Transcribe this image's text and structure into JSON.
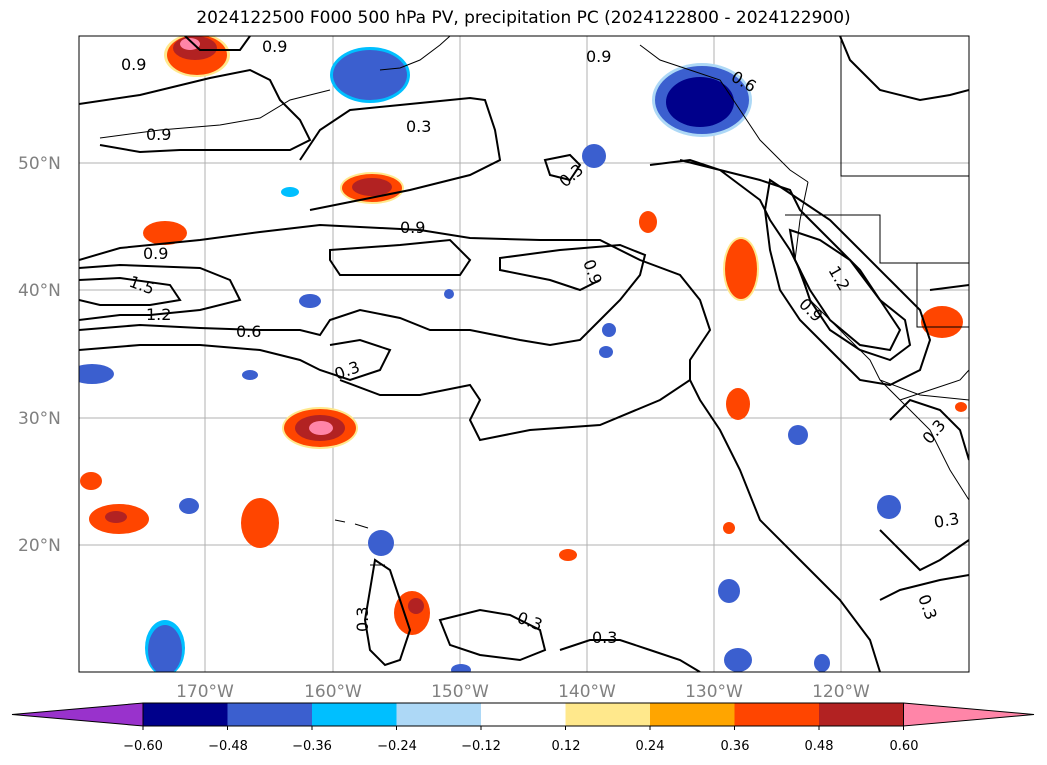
{
  "title": "2024122500 F000 500 hPa PV, precipitation PC (2024122800 - 2024122900)",
  "map": {
    "lat_labels": [
      "50°N",
      "40°N",
      "30°N",
      "20°N"
    ],
    "lon_labels": [
      "170°W",
      "160°W",
      "150°W",
      "140°W",
      "130°W",
      "120°W"
    ],
    "contour_labels": [
      "0.9",
      "0.9",
      "0.9",
      "0.9",
      "0.3",
      "0.9",
      "0.9",
      "1.5",
      "1.2",
      "0.6",
      "0.3",
      "0.3",
      "0.9",
      "0.6",
      "1.2",
      "0.9",
      "0.3",
      "0.3",
      "0.3",
      "0.3",
      "0.3",
      "0.3"
    ]
  },
  "colorbar": {
    "ticks": [
      "−0.60",
      "−0.48",
      "−0.36",
      "−0.24",
      "−0.12",
      "0.12",
      "0.24",
      "0.36",
      "0.48",
      "0.60"
    ],
    "colors": [
      "#9932cc",
      "#00008b",
      "#3b5fcf",
      "#00bfff",
      "#add8f6",
      "#ffffff",
      "#ffe88c",
      "#ffa500",
      "#ff4500",
      "#b22222",
      "#ff85a8"
    ]
  }
}
